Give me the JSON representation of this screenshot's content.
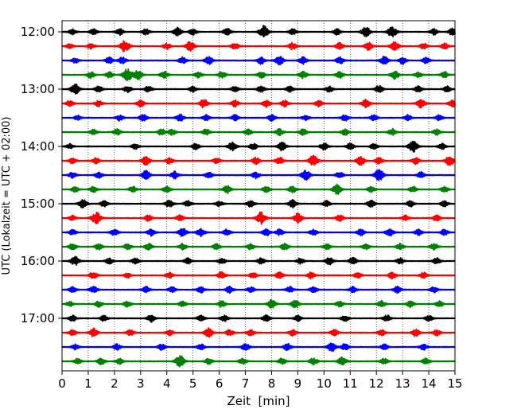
{
  "chart_data": {
    "type": "line",
    "title": "",
    "xlabel": "Zeit  [min]",
    "ylabel": "UTC (Lokalzeit = UTC + 02:00)",
    "xlim": [
      0,
      15
    ],
    "x_ticks": [
      0,
      1,
      2,
      3,
      4,
      5,
      6,
      7,
      8,
      9,
      10,
      11,
      12,
      13,
      14,
      15
    ],
    "x_tick_labels": [
      "0",
      "1",
      "2",
      "3",
      "4",
      "5",
      "6",
      "7",
      "8",
      "9",
      "10",
      "11",
      "12",
      "13",
      "14",
      "15"
    ],
    "y_ticks": [
      {
        "label": "12:00",
        "trace_index": 0
      },
      {
        "label": "13:00",
        "trace_index": 4
      },
      {
        "label": "14:00",
        "trace_index": 8
      },
      {
        "label": "15:00",
        "trace_index": 12
      },
      {
        "label": "16:00",
        "trace_index": 16
      },
      {
        "label": "17:00",
        "trace_index": 20
      }
    ],
    "grid": "vertical-dotted",
    "trace_interval_minutes": 15,
    "trace_colors": [
      "#000000",
      "#ff0000",
      "#0000ff",
      "#008000"
    ],
    "traces": [
      {
        "start": "12:00",
        "color": "#000000",
        "events": [
          [
            0.4,
            0.45
          ],
          [
            1.2,
            0.5
          ],
          [
            2.2,
            0.55
          ],
          [
            3.2,
            0.5
          ],
          [
            4.4,
            0.7
          ],
          [
            5.0,
            0.5
          ],
          [
            6.3,
            0.6
          ],
          [
            7.7,
            1.0
          ],
          [
            8.8,
            0.5
          ],
          [
            10.5,
            0.5
          ],
          [
            11.6,
            0.85
          ],
          [
            12.6,
            0.9
          ],
          [
            14.2,
            0.5
          ],
          [
            14.9,
            0.6
          ]
        ]
      },
      {
        "start": "12:15",
        "color": "#ff0000",
        "events": [
          [
            0.3,
            0.4
          ],
          [
            1.1,
            0.45
          ],
          [
            2.4,
            0.95
          ],
          [
            4.0,
            0.5
          ],
          [
            4.9,
            0.8
          ],
          [
            6.6,
            0.55
          ],
          [
            8.8,
            0.6
          ],
          [
            10.6,
            0.55
          ],
          [
            11.7,
            0.7
          ],
          [
            12.7,
            0.75
          ],
          [
            13.8,
            0.5
          ],
          [
            14.6,
            0.5
          ]
        ]
      },
      {
        "start": "12:30",
        "color": "#0000ff",
        "events": [
          [
            0.5,
            0.45
          ],
          [
            1.8,
            0.55
          ],
          [
            2.3,
            0.6
          ],
          [
            4.6,
            0.55
          ],
          [
            5.6,
            0.65
          ],
          [
            7.6,
            0.6
          ],
          [
            8.3,
            0.75
          ],
          [
            9.2,
            0.6
          ],
          [
            10.6,
            0.6
          ],
          [
            12.3,
            0.7
          ],
          [
            13.0,
            0.6
          ],
          [
            13.9,
            0.5
          ]
        ]
      },
      {
        "start": "12:45",
        "color": "#008000",
        "events": [
          [
            1.1,
            0.55
          ],
          [
            1.8,
            0.5
          ],
          [
            2.5,
            1.0
          ],
          [
            2.9,
            0.8
          ],
          [
            3.9,
            0.6
          ],
          [
            5.2,
            0.5
          ],
          [
            6.1,
            0.55
          ],
          [
            7.6,
            0.55
          ],
          [
            9.2,
            0.6
          ],
          [
            10.6,
            0.55
          ],
          [
            12.7,
            0.7
          ],
          [
            13.6,
            0.5
          ],
          [
            14.6,
            0.5
          ]
        ]
      },
      {
        "start": "13:00",
        "color": "#000000",
        "events": [
          [
            0.5,
            0.85
          ],
          [
            1.4,
            0.5
          ],
          [
            2.5,
            0.55
          ],
          [
            3.3,
            0.5
          ],
          [
            5.0,
            0.5
          ],
          [
            6.6,
            0.5
          ],
          [
            7.6,
            0.55
          ],
          [
            8.7,
            0.5
          ],
          [
            10.2,
            0.5
          ],
          [
            12.1,
            0.6
          ],
          [
            13.6,
            0.5
          ],
          [
            14.7,
            0.5
          ]
        ]
      },
      {
        "start": "13:15",
        "color": "#ff0000",
        "events": [
          [
            0.3,
            0.5
          ],
          [
            1.4,
            0.5
          ],
          [
            3.0,
            0.55
          ],
          [
            5.4,
            0.7
          ],
          [
            6.6,
            0.55
          ],
          [
            7.8,
            0.6
          ],
          [
            8.5,
            0.6
          ],
          [
            9.8,
            0.5
          ],
          [
            11.6,
            0.65
          ],
          [
            13.7,
            0.75
          ],
          [
            14.9,
            0.6
          ]
        ]
      },
      {
        "start": "13:30",
        "color": "#0000ff",
        "events": [
          [
            0.6,
            0.4
          ],
          [
            2.2,
            0.5
          ],
          [
            3.1,
            0.55
          ],
          [
            4.5,
            0.6
          ],
          [
            5.5,
            0.5
          ],
          [
            6.6,
            0.5
          ],
          [
            8.0,
            0.55
          ],
          [
            9.3,
            0.5
          ],
          [
            10.8,
            0.55
          ],
          [
            11.9,
            0.5
          ],
          [
            13.2,
            0.5
          ],
          [
            14.4,
            0.5
          ]
        ]
      },
      {
        "start": "13:45",
        "color": "#008000",
        "events": [
          [
            1.2,
            0.45
          ],
          [
            2.1,
            0.5
          ],
          [
            3.8,
            0.55
          ],
          [
            4.2,
            0.5
          ],
          [
            5.5,
            0.5
          ],
          [
            7.1,
            0.5
          ],
          [
            8.3,
            0.55
          ],
          [
            9.2,
            0.55
          ],
          [
            10.8,
            0.5
          ],
          [
            12.6,
            0.55
          ],
          [
            14.3,
            0.5
          ]
        ]
      },
      {
        "start": "14:00",
        "color": "#000000",
        "events": [
          [
            0.3,
            0.4
          ],
          [
            2.8,
            0.45
          ],
          [
            5.1,
            0.5
          ],
          [
            6.5,
            0.7
          ],
          [
            7.3,
            0.55
          ],
          [
            8.4,
            0.75
          ],
          [
            10.0,
            0.6
          ],
          [
            11.0,
            0.55
          ],
          [
            11.9,
            0.5
          ],
          [
            13.4,
            0.95
          ],
          [
            14.5,
            0.5
          ]
        ]
      },
      {
        "start": "14:15",
        "color": "#ff0000",
        "events": [
          [
            0.4,
            0.45
          ],
          [
            1.3,
            0.5
          ],
          [
            3.2,
            0.75
          ],
          [
            4.1,
            0.55
          ],
          [
            5.9,
            0.5
          ],
          [
            7.4,
            0.55
          ],
          [
            8.3,
            0.6
          ],
          [
            9.6,
            0.9
          ],
          [
            11.4,
            0.75
          ],
          [
            12.1,
            0.55
          ],
          [
            13.5,
            0.55
          ],
          [
            14.8,
            0.85
          ]
        ]
      },
      {
        "start": "14:30",
        "color": "#0000ff",
        "events": [
          [
            0.4,
            0.5
          ],
          [
            1.4,
            0.55
          ],
          [
            3.2,
            0.75
          ],
          [
            4.3,
            0.65
          ],
          [
            5.6,
            0.5
          ],
          [
            7.4,
            0.55
          ],
          [
            9.3,
            0.85
          ],
          [
            10.6,
            0.55
          ],
          [
            12.1,
            0.95
          ],
          [
            13.7,
            0.5
          ]
        ]
      },
      {
        "start": "14:45",
        "color": "#008000",
        "events": [
          [
            0.5,
            0.45
          ],
          [
            1.2,
            0.5
          ],
          [
            2.7,
            0.5
          ],
          [
            4.0,
            0.55
          ],
          [
            6.3,
            0.65
          ],
          [
            7.8,
            0.5
          ],
          [
            8.8,
            0.55
          ],
          [
            10.5,
            0.8
          ],
          [
            11.8,
            0.5
          ],
          [
            13.4,
            0.5
          ],
          [
            14.6,
            0.5
          ]
        ]
      },
      {
        "start": "15:00",
        "color": "#000000",
        "events": [
          [
            0.8,
            0.75
          ],
          [
            1.6,
            0.5
          ],
          [
            4.1,
            0.6
          ],
          [
            4.8,
            0.5
          ],
          [
            6.0,
            0.45
          ],
          [
            7.2,
            0.55
          ],
          [
            8.8,
            0.7
          ],
          [
            10.1,
            0.5
          ],
          [
            11.8,
            0.6
          ],
          [
            13.3,
            0.5
          ],
          [
            14.6,
            0.5
          ]
        ]
      },
      {
        "start": "15:15",
        "color": "#ff0000",
        "events": [
          [
            0.4,
            0.4
          ],
          [
            1.3,
            1.0
          ],
          [
            3.3,
            0.5
          ],
          [
            4.5,
            0.5
          ],
          [
            7.6,
            1.0
          ],
          [
            9.0,
            0.8
          ],
          [
            10.6,
            0.55
          ],
          [
            13.1,
            0.5
          ],
          [
            14.3,
            0.5
          ]
        ]
      },
      {
        "start": "15:30",
        "color": "#0000ff",
        "events": [
          [
            0.4,
            0.45
          ],
          [
            2.0,
            0.55
          ],
          [
            3.4,
            0.6
          ],
          [
            4.6,
            0.75
          ],
          [
            5.3,
            0.7
          ],
          [
            6.3,
            0.55
          ],
          [
            7.8,
            0.55
          ],
          [
            8.3,
            0.55
          ],
          [
            9.6,
            0.5
          ],
          [
            11.4,
            0.55
          ],
          [
            12.5,
            0.65
          ],
          [
            13.6,
            0.5
          ],
          [
            14.6,
            0.5
          ]
        ]
      },
      {
        "start": "15:45",
        "color": "#008000",
        "events": [
          [
            0.4,
            0.55
          ],
          [
            1.4,
            0.5
          ],
          [
            2.5,
            0.5
          ],
          [
            3.3,
            0.55
          ],
          [
            4.6,
            0.5
          ],
          [
            5.9,
            0.5
          ],
          [
            7.2,
            0.5
          ],
          [
            8.5,
            0.55
          ],
          [
            10.1,
            0.5
          ],
          [
            11.6,
            0.5
          ],
          [
            12.9,
            0.5
          ],
          [
            14.2,
            0.55
          ]
        ]
      },
      {
        "start": "16:00",
        "color": "#000000",
        "events": [
          [
            0.5,
            0.75
          ],
          [
            1.8,
            0.5
          ],
          [
            2.8,
            0.5
          ],
          [
            4.8,
            0.5
          ],
          [
            6.1,
            0.5
          ],
          [
            7.6,
            0.5
          ],
          [
            9.1,
            0.5
          ],
          [
            10.2,
            0.65
          ],
          [
            11.1,
            0.6
          ],
          [
            12.9,
            0.5
          ],
          [
            14.3,
            0.5
          ]
        ]
      },
      {
        "start": "16:15",
        "color": "#ff0000",
        "events": [
          [
            1.2,
            0.6
          ],
          [
            2.5,
            0.45
          ],
          [
            4.1,
            0.5
          ],
          [
            6.1,
            0.6
          ],
          [
            7.3,
            0.5
          ],
          [
            8.3,
            0.55
          ],
          [
            9.5,
            0.55
          ],
          [
            11.3,
            0.5
          ],
          [
            12.6,
            0.55
          ],
          [
            13.8,
            0.5
          ]
        ]
      },
      {
        "start": "16:30",
        "color": "#0000ff",
        "events": [
          [
            0.4,
            0.5
          ],
          [
            1.2,
            0.55
          ],
          [
            3.2,
            0.5
          ],
          [
            4.2,
            0.45
          ],
          [
            5.3,
            0.5
          ],
          [
            6.4,
            0.55
          ],
          [
            7.2,
            0.5
          ],
          [
            8.7,
            0.5
          ],
          [
            9.6,
            0.5
          ],
          [
            11.1,
            0.5
          ],
          [
            12.8,
            0.55
          ],
          [
            14.2,
            0.5
          ]
        ]
      },
      {
        "start": "16:45",
        "color": "#008000",
        "events": [
          [
            0.3,
            0.4
          ],
          [
            1.4,
            0.5
          ],
          [
            2.5,
            0.5
          ],
          [
            4.6,
            0.45
          ],
          [
            6.1,
            0.5
          ],
          [
            8.0,
            0.7
          ],
          [
            8.9,
            0.65
          ],
          [
            10.6,
            0.5
          ],
          [
            12.2,
            0.55
          ],
          [
            13.3,
            0.5
          ],
          [
            14.4,
            0.5
          ]
        ]
      },
      {
        "start": "17:00",
        "color": "#000000",
        "events": [
          [
            0.4,
            0.5
          ],
          [
            1.6,
            0.5
          ],
          [
            3.4,
            0.6
          ],
          [
            5.3,
            0.5
          ],
          [
            6.2,
            0.5
          ],
          [
            7.8,
            0.55
          ],
          [
            9.0,
            0.5
          ],
          [
            10.8,
            0.5
          ],
          [
            12.4,
            0.55
          ],
          [
            14.0,
            0.5
          ]
        ]
      },
      {
        "start": "17:15",
        "color": "#ff0000",
        "events": [
          [
            0.4,
            0.45
          ],
          [
            1.2,
            0.7
          ],
          [
            2.6,
            0.5
          ],
          [
            4.1,
            0.5
          ],
          [
            5.6,
            0.75
          ],
          [
            6.4,
            0.5
          ],
          [
            7.2,
            0.5
          ],
          [
            8.8,
            0.5
          ],
          [
            10.4,
            0.55
          ],
          [
            12.2,
            0.5
          ],
          [
            13.5,
            0.6
          ],
          [
            14.3,
            0.5
          ]
        ]
      },
      {
        "start": "17:30",
        "color": "#0000ff",
        "events": [
          [
            0.5,
            0.45
          ],
          [
            2.1,
            0.5
          ],
          [
            3.8,
            0.5
          ],
          [
            5.3,
            0.5
          ],
          [
            7.0,
            0.6
          ],
          [
            8.6,
            0.6
          ],
          [
            10.3,
            0.75
          ],
          [
            10.8,
            0.55
          ],
          [
            12.3,
            0.5
          ],
          [
            13.8,
            0.5
          ]
        ]
      },
      {
        "start": "17:45",
        "color": "#008000",
        "events": [
          [
            0.6,
            0.45
          ],
          [
            1.5,
            0.55
          ],
          [
            2.2,
            0.5
          ],
          [
            4.5,
            0.95
          ],
          [
            5.6,
            0.5
          ],
          [
            6.9,
            0.5
          ],
          [
            8.4,
            0.5
          ],
          [
            9.6,
            0.6
          ],
          [
            10.7,
            0.75
          ],
          [
            12.3,
            0.5
          ],
          [
            13.9,
            0.55
          ]
        ]
      }
    ]
  }
}
